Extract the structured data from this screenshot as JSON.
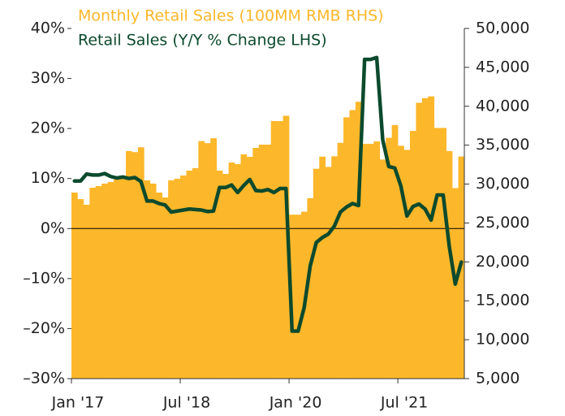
{
  "chart_data": {
    "type": "combo",
    "categories": [
      "Jan '17",
      null,
      null,
      null,
      null,
      null,
      null,
      null,
      null,
      null,
      null,
      null,
      null,
      null,
      null,
      null,
      null,
      null,
      "Jul '18",
      null,
      null,
      null,
      null,
      null,
      null,
      null,
      null,
      null,
      null,
      null,
      null,
      null,
      null,
      null,
      null,
      null,
      "Jan '20",
      null,
      null,
      null,
      null,
      null,
      null,
      null,
      null,
      null,
      null,
      null,
      null,
      null,
      null,
      null,
      null,
      null,
      "Jul '21",
      null,
      null,
      null,
      null,
      null,
      null,
      null,
      null,
      null,
      null
    ],
    "series": [
      {
        "name": "Monthly Retail Sales (100MM RMB RHS)",
        "type": "bar",
        "axis": "y2",
        "color": "#fcb72a",
        "values": [
          28910,
          28070,
          27340,
          29540,
          29740,
          30060,
          30270,
          30580,
          30680,
          34240,
          34110,
          34730,
          30480,
          30060,
          28910,
          28280,
          30480,
          30680,
          31100,
          31730,
          32040,
          35530,
          35260,
          35890,
          31730,
          31310,
          32770,
          32560,
          33820,
          33500,
          34650,
          35070,
          35070,
          38100,
          38090,
          38780,
          26070,
          26070,
          26450,
          28180,
          31970,
          33530,
          32200,
          33570,
          35300,
          38580,
          39510,
          40570,
          35163,
          35163,
          35484,
          33153,
          35945,
          37586,
          34925,
          34395,
          36833,
          40454,
          41043,
          41269,
          37213,
          37213,
          34233,
          29483,
          33547
        ]
      },
      {
        "name": "Retail Sales (Y/Y % Change LHS)",
        "type": "line",
        "axis": "y",
        "color": "#0c4a2d",
        "values": [
          9.5,
          9.5,
          10.9,
          10.7,
          10.7,
          11.0,
          10.4,
          10.1,
          10.3,
          10.0,
          10.2,
          9.4,
          5.5,
          5.5,
          5.0,
          4.7,
          3.3,
          3.5,
          3.7,
          3.9,
          3.8,
          3.7,
          3.4,
          3.5,
          8.2,
          8.2,
          8.7,
          7.2,
          8.6,
          9.8,
          7.6,
          7.5,
          7.8,
          7.2,
          8.0,
          8.0,
          -20.5,
          -20.5,
          -15.8,
          -7.5,
          -2.8,
          -1.8,
          -1.1,
          0.5,
          3.3,
          4.3,
          5.0,
          4.6,
          33.8,
          33.8,
          34.2,
          17.7,
          12.4,
          12.1,
          8.5,
          2.5,
          4.4,
          4.9,
          3.9,
          1.7,
          6.7,
          6.7,
          -3.5,
          -11.1,
          -6.7
        ]
      }
    ],
    "ylim": [
      -30,
      40
    ],
    "yticks": [
      {
        "value": -30,
        "label": "–30%"
      },
      {
        "value": -20,
        "label": "–20%"
      },
      {
        "value": -10,
        "label": "–10%"
      },
      {
        "value": 0,
        "label": "0%"
      },
      {
        "value": 10,
        "label": "10%"
      },
      {
        "value": 20,
        "label": "20%"
      },
      {
        "value": 30,
        "label": "30%"
      },
      {
        "value": 40,
        "label": "40%"
      }
    ],
    "y2lim": [
      5000,
      50000
    ],
    "y2ticks": [
      {
        "value": 5000,
        "label": "5,000"
      },
      {
        "value": 10000,
        "label": "10,000"
      },
      {
        "value": 15000,
        "label": "15,000"
      },
      {
        "value": 20000,
        "label": "20,000"
      },
      {
        "value": 25000,
        "label": "25,000"
      },
      {
        "value": 30000,
        "label": "30,000"
      },
      {
        "value": 35000,
        "label": "35,000"
      },
      {
        "value": 40000,
        "label": "40,000"
      },
      {
        "value": 45000,
        "label": "45,000"
      },
      {
        "value": 50000,
        "label": "50,000"
      }
    ],
    "grid": false
  }
}
